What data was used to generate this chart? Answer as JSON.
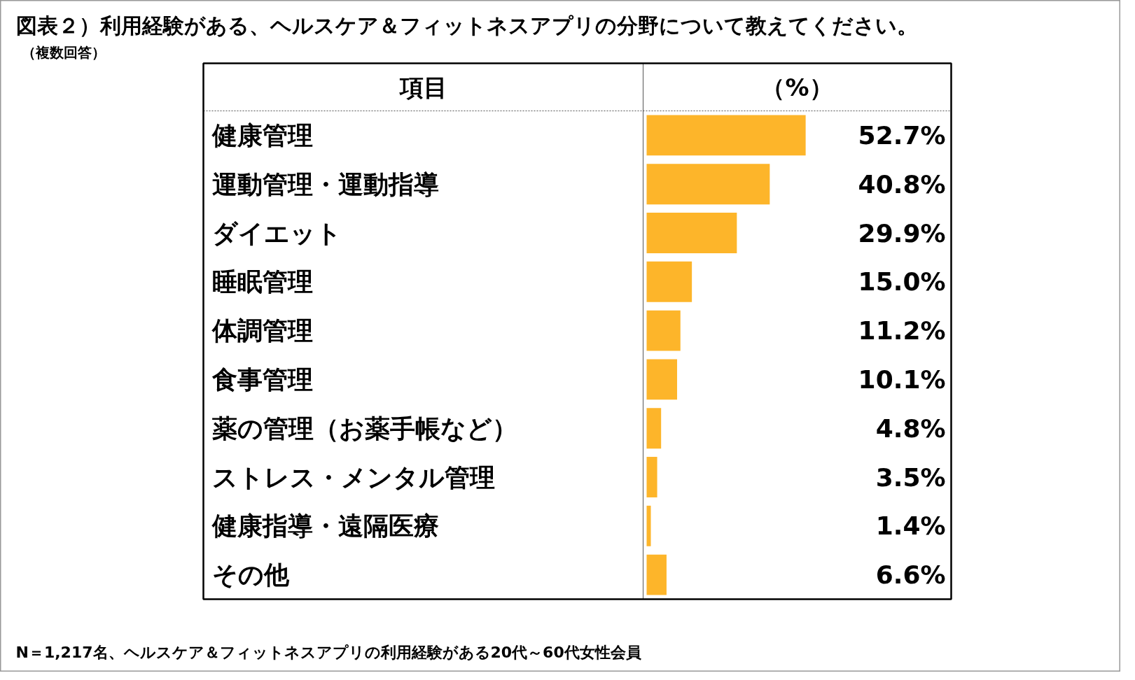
{
  "chart_data": {
    "type": "bar",
    "orientation": "horizontal",
    "title": "図表２）利用経験がある、ヘルスケア＆フィットネスアプリの分野について教えてください。",
    "subtitle": "（複数回答）",
    "ylabel": "項目",
    "xlabel": "（%）",
    "categories": [
      "健康管理",
      "運動管理・運動指導",
      "ダイエット",
      "睡眠管理",
      "体調管理",
      "食事管理",
      "薬の管理（お薬手帳など）",
      "ストレス・メンタル管理",
      "健康指導・遠隔医療",
      "その他"
    ],
    "values": [
      52.7,
      40.8,
      29.9,
      15.0,
      11.2,
      10.1,
      4.8,
      3.5,
      1.4,
      6.6
    ],
    "value_labels": [
      "52.7%",
      "40.8%",
      "29.9%",
      "15.0%",
      "11.2%",
      "10.1%",
      "4.8%",
      "3.5%",
      "1.4%",
      "6.6%"
    ],
    "color": "#fdb52a",
    "annotations": [
      "N＝1,217名、ヘルスケア＆フィットネスアプリの利用経験がある20代～60代女性会員"
    ]
  }
}
